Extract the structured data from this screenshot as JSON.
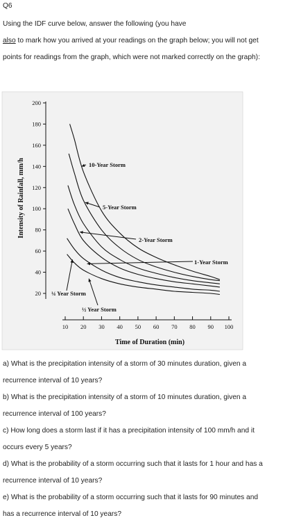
{
  "header": {
    "qnum": "Q6",
    "line1": "Using the IDF curve below, answer the following (you have",
    "line2_underlined": "also",
    "line2_rest": " to mark how you arrived at your readings on the graph below; you will not get",
    "line3": "points for readings from the graph, which were not marked correctly on the graph):"
  },
  "chart_data": {
    "type": "line",
    "xlabel": "Time of Duration (min)",
    "ylabel": "Intensity of Rainfall, mm/h",
    "xticks": [
      10,
      20,
      30,
      40,
      50,
      60,
      70,
      80,
      90,
      100
    ],
    "yticks": [
      20,
      40,
      60,
      80,
      100,
      120,
      140,
      160,
      180,
      200
    ],
    "xlim": [
      10,
      100
    ],
    "ylim": [
      20,
      200
    ],
    "series": [
      {
        "name": "10-Year Storm",
        "x": [
          12.5,
          15,
          20,
          30,
          40,
          50,
          60,
          70,
          80,
          90,
          95
        ],
        "y": [
          180,
          166,
          135,
          98,
          77,
          63,
          54,
          47,
          41,
          36,
          33
        ]
      },
      {
        "name": "5-Year Storm",
        "x": [
          12,
          15,
          20,
          30,
          40,
          50,
          60,
          70,
          80,
          90,
          95
        ],
        "y": [
          152,
          134,
          108,
          80,
          63,
          52,
          45,
          40,
          36,
          33,
          32
        ]
      },
      {
        "name": "2-Year Storm",
        "x": [
          11.5,
          15,
          20,
          30,
          40,
          50,
          60,
          70,
          80,
          90,
          95
        ],
        "y": [
          122,
          104,
          86,
          64,
          52,
          44,
          39,
          35,
          32,
          30,
          29
        ]
      },
      {
        "name": "1-Year Storm",
        "x": [
          11.5,
          15,
          20,
          30,
          40,
          50,
          60,
          70,
          80,
          90,
          95
        ],
        "y": [
          100,
          86,
          70,
          54,
          44,
          38,
          34,
          31,
          29,
          27,
          26
        ]
      },
      {
        "name": "½ Year Storm",
        "x": [
          11,
          15,
          20,
          30,
          40,
          50,
          60,
          70,
          80,
          90,
          95
        ],
        "y": [
          72,
          62,
          53,
          42,
          35,
          31,
          28,
          26,
          24,
          23,
          22
        ]
      },
      {
        "name": "¼ Year Storm",
        "x": [
          11,
          15,
          20,
          30,
          40,
          50,
          60,
          70,
          80,
          90,
          95
        ],
        "y": [
          57,
          49,
          42,
          34,
          29,
          26,
          24,
          22,
          21,
          20,
          19
        ]
      }
    ],
    "annotations": [
      {
        "label": "10-Year Storm",
        "pointer_x": 19,
        "pointer_y": 140
      },
      {
        "label": "5-Year Storm",
        "pointer_x": 21,
        "pointer_y": 106
      },
      {
        "label": "2-Year Storm",
        "pointer_x": 18,
        "pointer_y": 78
      },
      {
        "label": "1-Year Storm",
        "pointer_x": 22,
        "pointer_y": 48
      },
      {
        "label": "¼ Year Storm",
        "pointer_x": 14,
        "pointer_y": 52
      },
      {
        "label": "½ Year Storm",
        "pointer_x": 23,
        "pointer_y": 34
      }
    ]
  },
  "questions": {
    "a1": "a) What is the precipitation intensity of a storm of 30 minutes duration, given a",
    "a2": "recurrence interval of 10 years?",
    "b1": "b) What is the precipitation intensity of a storm of 10 minutes duration, given a",
    "b2": "recurrence interval of 100 years?",
    "c1": "c) How long does a storm last if it has a precipitation intensity of 100 mm/h and it",
    "c2": "occurs every 5 years?",
    "d1": "d) What is the probability of a storm occurring such that it lasts for 1 hour and has a",
    "d2": "recurrence interval of 10 years?",
    "e1": "e) What is the probability of a storm occurring such that it lasts for 90 minutes and",
    "e2": "has a recurrence interval of 10 years?"
  }
}
